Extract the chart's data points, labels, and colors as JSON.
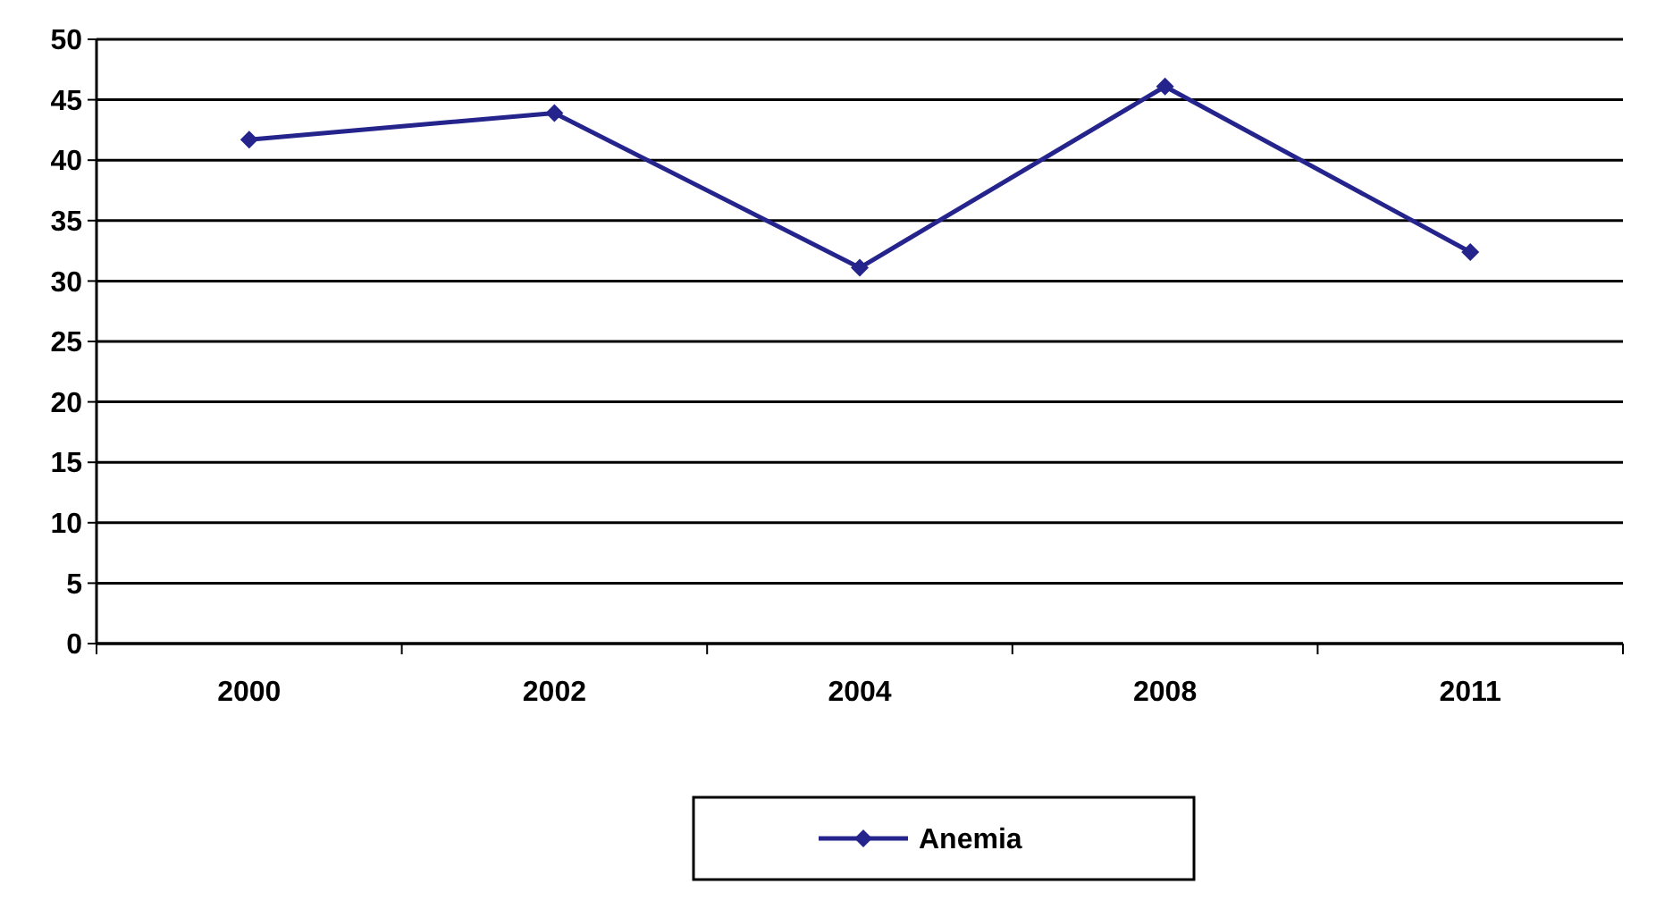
{
  "chart_data": {
    "type": "line",
    "categories": [
      "2000",
      "2002",
      "2004",
      "2008",
      "2011"
    ],
    "series": [
      {
        "name": "Anemia",
        "color": "#24248c",
        "values": [
          41.7,
          43.9,
          31.1,
          46.1,
          32.4
        ]
      }
    ],
    "ylim": [
      0,
      50
    ],
    "yticks": [
      0,
      5,
      10,
      15,
      20,
      25,
      30,
      35,
      40,
      45,
      50
    ],
    "grid": "y",
    "legend": "bottom",
    "marker": "diamond",
    "line_style": "solid"
  }
}
